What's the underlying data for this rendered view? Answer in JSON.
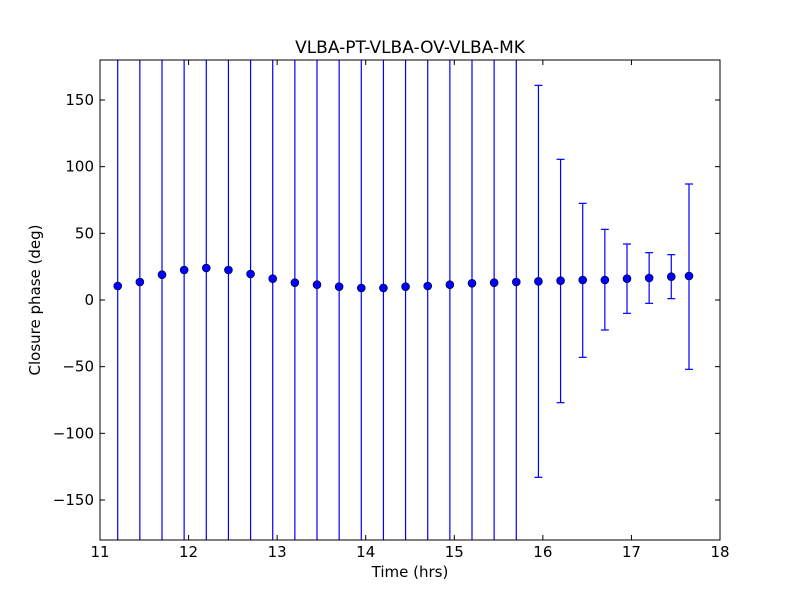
{
  "chart_data": {
    "type": "scatter",
    "title": "VLBA-PT-VLBA-OV-VLBA-MK",
    "xlabel": "Time (hrs)",
    "ylabel": "Closure phase (deg)",
    "xlim": [
      11,
      18
    ],
    "ylim": [
      -180,
      180
    ],
    "x_ticks": [
      11,
      12,
      13,
      14,
      15,
      16,
      17,
      18
    ],
    "x_tick_labels": [
      "11",
      "12",
      "13",
      "14",
      "15",
      "16",
      "17",
      "18"
    ],
    "y_ticks": [
      -150,
      -100,
      -50,
      0,
      50,
      100,
      150
    ],
    "y_tick_labels": [
      "−150",
      "−100",
      "−50",
      "0",
      "50",
      "100",
      "150"
    ],
    "grid": false,
    "legend": "none",
    "colors": {
      "points": "#0000ff",
      "errorbars": "#0000ff",
      "axes": "#000000"
    },
    "series": [
      {
        "marker": "circle",
        "errorbars": true,
        "points": [
          {
            "x": 11.2,
            "y": 10.5,
            "lo": -180,
            "hi": 180
          },
          {
            "x": 11.45,
            "y": 13.5,
            "lo": -180,
            "hi": 180
          },
          {
            "x": 11.7,
            "y": 19.0,
            "lo": -180,
            "hi": 180
          },
          {
            "x": 11.95,
            "y": 22.5,
            "lo": -180,
            "hi": 180
          },
          {
            "x": 12.2,
            "y": 24.0,
            "lo": -180,
            "hi": 180
          },
          {
            "x": 12.45,
            "y": 22.5,
            "lo": -180,
            "hi": 180
          },
          {
            "x": 12.7,
            "y": 19.5,
            "lo": -180,
            "hi": 180
          },
          {
            "x": 12.95,
            "y": 16.0,
            "lo": -180,
            "hi": 180
          },
          {
            "x": 13.2,
            "y": 13.0,
            "lo": -180,
            "hi": 180
          },
          {
            "x": 13.45,
            "y": 11.5,
            "lo": -180,
            "hi": 180
          },
          {
            "x": 13.7,
            "y": 10.0,
            "lo": -180,
            "hi": 180
          },
          {
            "x": 13.95,
            "y": 9.0,
            "lo": -180,
            "hi": 180
          },
          {
            "x": 14.2,
            "y": 9.0,
            "lo": -180,
            "hi": 180
          },
          {
            "x": 14.45,
            "y": 10.0,
            "lo": -180,
            "hi": 180
          },
          {
            "x": 14.7,
            "y": 10.5,
            "lo": -180,
            "hi": 180
          },
          {
            "x": 14.95,
            "y": 11.5,
            "lo": -180,
            "hi": 180
          },
          {
            "x": 15.2,
            "y": 12.5,
            "lo": -180,
            "hi": 180
          },
          {
            "x": 15.45,
            "y": 13.0,
            "lo": -180,
            "hi": 180
          },
          {
            "x": 15.7,
            "y": 13.5,
            "lo": -180,
            "hi": 180
          },
          {
            "x": 15.95,
            "y": 14.0,
            "lo": -133,
            "hi": 161
          },
          {
            "x": 16.2,
            "y": 14.5,
            "lo": -77,
            "hi": 105.5
          },
          {
            "x": 16.45,
            "y": 15.0,
            "lo": -43,
            "hi": 72.5
          },
          {
            "x": 16.7,
            "y": 15.0,
            "lo": -22.5,
            "hi": 53
          },
          {
            "x": 16.95,
            "y": 16.0,
            "lo": -10,
            "hi": 42
          },
          {
            "x": 17.2,
            "y": 16.5,
            "lo": -2.5,
            "hi": 35.5
          },
          {
            "x": 17.45,
            "y": 17.5,
            "lo": 1,
            "hi": 34
          },
          {
            "x": 17.65,
            "y": 18.0,
            "lo": -52,
            "hi": 87
          }
        ]
      }
    ]
  }
}
